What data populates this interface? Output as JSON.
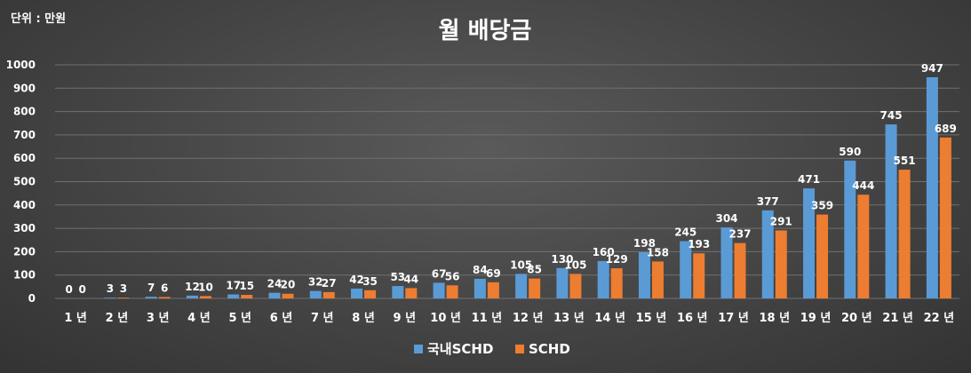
{
  "unit_note": "단위 : 만원",
  "colors": {
    "series1": "#5b9bd5",
    "series2": "#ed7d31"
  },
  "chart_data": {
    "type": "bar",
    "title": "월 배당금",
    "xlabel": "",
    "ylabel": "",
    "ylim": [
      0,
      1000
    ],
    "yticks": [
      0,
      100,
      200,
      300,
      400,
      500,
      600,
      700,
      800,
      900,
      1000
    ],
    "grid": true,
    "legend_position": "bottom",
    "categories": [
      "1 년",
      "2 년",
      "3 년",
      "4 년",
      "5 년",
      "6 년",
      "7 년",
      "8 년",
      "9 년",
      "10 년",
      "11 년",
      "12 년",
      "13 년",
      "14 년",
      "15 년",
      "16 년",
      "17 년",
      "18 년",
      "19 년",
      "20 년",
      "21 년",
      "22 년"
    ],
    "series": [
      {
        "name": "국내SCHD",
        "values": [
          0,
          3,
          7,
          12,
          17,
          24,
          32,
          42,
          53,
          67,
          84,
          105,
          130,
          160,
          198,
          245,
          304,
          377,
          471,
          590,
          745,
          947
        ]
      },
      {
        "name": "SCHD",
        "values": [
          0,
          3,
          6,
          10,
          15,
          20,
          27,
          35,
          44,
          56,
          69,
          85,
          105,
          129,
          158,
          193,
          237,
          291,
          359,
          444,
          551,
          689
        ]
      }
    ]
  }
}
